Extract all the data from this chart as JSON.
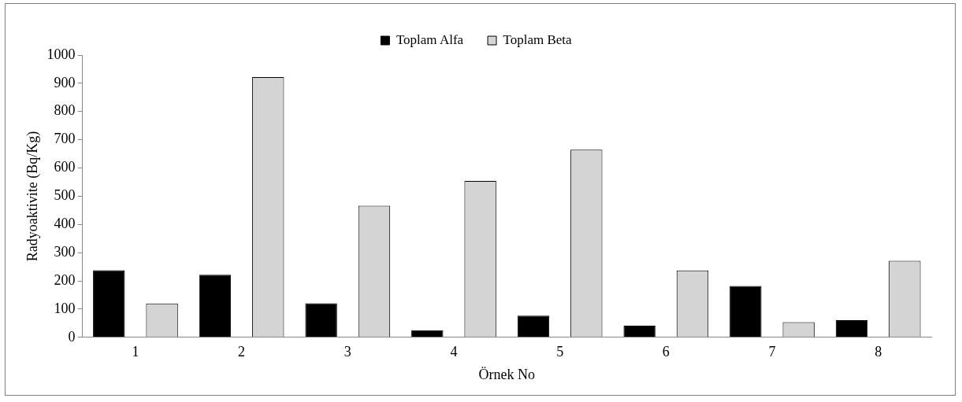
{
  "chart_data": {
    "type": "bar",
    "categories": [
      "1",
      "2",
      "3",
      "4",
      "5",
      "6",
      "7",
      "8"
    ],
    "series": [
      {
        "name": "Toplam Alfa",
        "color": "#000000",
        "values": [
          238,
          222,
          121,
          25,
          77,
          41,
          182,
          61
        ]
      },
      {
        "name": "Toplam Beta",
        "color": "#d4d4d4",
        "values": [
          120,
          922,
          466,
          554,
          665,
          237,
          54,
          271
        ]
      }
    ],
    "xlabel": "Örnek No",
    "ylabel": "Radyoaktivite (Bq/Kg)",
    "ylim": [
      0,
      1000
    ],
    "yticks": [
      0,
      100,
      200,
      300,
      400,
      500,
      600,
      700,
      800,
      900,
      1000
    ],
    "legend": "top",
    "grid": false
  }
}
